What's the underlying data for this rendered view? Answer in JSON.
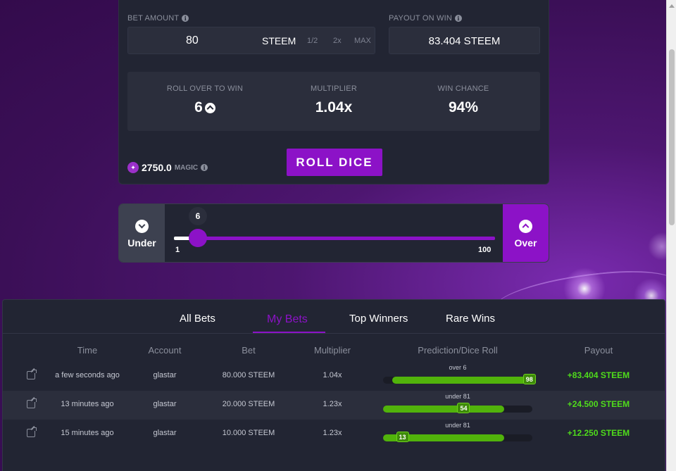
{
  "controls": {
    "bet_amount_label": "BET AMOUNT",
    "bet_amount_value": "80",
    "bet_unit": "STEEM",
    "half_label": "1/2",
    "double_label": "2x",
    "max_label": "MAX",
    "payout_label": "PAYOUT ON WIN",
    "payout_value": "83.404 STEEM",
    "roll_over_label": "ROLL OVER TO WIN",
    "roll_over_value": "6",
    "multiplier_label": "MULTIPLIER",
    "multiplier_value": "1.04x",
    "win_chance_label": "WIN CHANCE",
    "win_chance_value": "94%",
    "magic_balance": "2750.0",
    "magic_unit": "MAGIC",
    "roll_button": "ROLL DICE"
  },
  "slider": {
    "under_label": "Under",
    "over_label": "Over",
    "value": "6",
    "min": "1",
    "max": "100"
  },
  "bets": {
    "tabs": [
      "All Bets",
      "My Bets",
      "Top Winners",
      "Rare Wins"
    ],
    "active_tab": "My Bets",
    "headers": [
      "Time",
      "Account",
      "Bet",
      "Multiplier",
      "Prediction/Dice Roll",
      "Payout"
    ],
    "rows": [
      {
        "time": "a few seconds ago",
        "account": "glastar",
        "bet": "80.000 STEEM",
        "multiplier": "1.04x",
        "prediction": "over 6",
        "direction": "over",
        "target": 6,
        "roll": "98",
        "roll_value": 98,
        "payout": "+83.404 STEEM"
      },
      {
        "time": "13 minutes ago",
        "account": "glastar",
        "bet": "20.000 STEEM",
        "multiplier": "1.23x",
        "prediction": "under 81",
        "direction": "under",
        "target": 81,
        "roll": "54",
        "roll_value": 54,
        "payout": "+24.500 STEEM"
      },
      {
        "time": "15 minutes ago",
        "account": "glastar",
        "bet": "10.000 STEEM",
        "multiplier": "1.23x",
        "prediction": "under 81",
        "direction": "under",
        "target": 81,
        "roll": "13",
        "roll_value": 13,
        "payout": "+12.250 STEEM"
      }
    ]
  },
  "colors": {
    "accent": "#8c12c7",
    "win_green": "#4fdc1b",
    "panel_bg": "#222533"
  }
}
